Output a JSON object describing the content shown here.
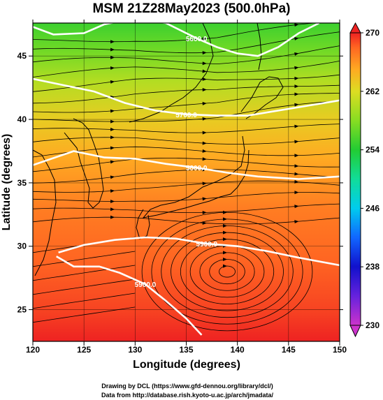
{
  "chart_data": {
    "type": "heatmap",
    "title": "MSM 21Z28May2023 (500.0hPa)",
    "xlabel": "Longitude (degrees)",
    "ylabel": "Latitude  (degrees)",
    "xlim": [
      120,
      150
    ],
    "ylim": [
      22.5,
      47.6
    ],
    "xticks": [
      120,
      125,
      130,
      135,
      140,
      145,
      150
    ],
    "yticks": [
      25,
      30,
      35,
      40,
      45
    ],
    "colorbar": {
      "ticks": [
        230,
        238,
        246,
        254,
        262,
        270
      ],
      "range": [
        230,
        270
      ],
      "stops": [
        {
          "v": 230,
          "c": "#cc33cc"
        },
        {
          "v": 234,
          "c": "#6622dd"
        },
        {
          "v": 238,
          "c": "#1111cc"
        },
        {
          "v": 242,
          "c": "#1166ff"
        },
        {
          "v": 246,
          "c": "#00ccee"
        },
        {
          "v": 250,
          "c": "#11dd99"
        },
        {
          "v": 254,
          "c": "#22cc33"
        },
        {
          "v": 258,
          "c": "#88dd22"
        },
        {
          "v": 262,
          "c": "#dddd22"
        },
        {
          "v": 265,
          "c": "#ffaa22"
        },
        {
          "v": 268,
          "c": "#ff6622"
        },
        {
          "v": 270,
          "c": "#ee2222"
        }
      ]
    },
    "temperature_field": [
      {
        "lat": 47.6,
        "value": 255
      },
      {
        "lat": 45.5,
        "value": 257
      },
      {
        "lat": 43,
        "value": 260
      },
      {
        "lat": 40,
        "value": 263
      },
      {
        "lat": 37,
        "value": 265
      },
      {
        "lat": 33,
        "value": 267
      },
      {
        "lat": 29,
        "value": 268
      },
      {
        "lat": 25,
        "value": 269
      },
      {
        "lat": 22.5,
        "value": 270
      }
    ],
    "contours": [
      {
        "label": "5600.0",
        "points": [
          [
            120,
            47.3
          ],
          [
            122,
            46.7
          ],
          [
            125,
            46.8
          ],
          [
            127,
            47.5
          ],
          [
            130,
            48
          ],
          [
            133,
            47.6
          ],
          [
            136,
            46.4
          ],
          [
            138,
            45.7
          ],
          [
            140,
            45.2
          ],
          [
            142,
            45
          ],
          [
            144,
            45.7
          ],
          [
            146,
            46.8
          ],
          [
            148,
            47.6
          ]
        ]
      },
      {
        "label": "5700.0",
        "points": [
          [
            120,
            43.2
          ],
          [
            123,
            42.7
          ],
          [
            126,
            42.2
          ],
          [
            129,
            41.3
          ],
          [
            132,
            40.7
          ],
          [
            135,
            40.4
          ],
          [
            138,
            40.3
          ],
          [
            141,
            40.3
          ],
          [
            144,
            40.7
          ],
          [
            147,
            41.1
          ],
          [
            150,
            41.5
          ]
        ]
      },
      {
        "label": "5800.0",
        "points": [
          [
            120,
            36.4
          ],
          [
            124,
            37.5
          ],
          [
            127,
            37
          ],
          [
            130,
            36.9
          ],
          [
            133,
            36.5
          ],
          [
            136,
            36.2
          ],
          [
            139,
            35.8
          ],
          [
            142,
            35.5
          ],
          [
            146,
            35.3
          ],
          [
            150,
            35.5
          ]
        ]
      },
      {
        "label": "5900.0",
        "points": [
          [
            122.5,
            29.5
          ],
          [
            125,
            30.1
          ],
          [
            128,
            30.5
          ],
          [
            131,
            30.7
          ],
          [
            134,
            30.6
          ],
          [
            137,
            30.2
          ],
          [
            140,
            30
          ],
          [
            143,
            29.6
          ],
          [
            146,
            29.1
          ],
          [
            150,
            28.5
          ]
        ]
      },
      {
        "label": "5900.0",
        "points": [
          [
            122.3,
            29.2
          ],
          [
            124,
            28.4
          ],
          [
            126.5,
            28.4
          ],
          [
            128.5,
            27.9
          ],
          [
            131,
            27
          ],
          [
            133,
            25.7
          ],
          [
            135,
            24.3
          ],
          [
            136.5,
            23
          ]
        ]
      }
    ],
    "streamlines": "westerly flow north of 32N, anticyclonic circulation centered near 139E 28N",
    "credits": [
      "Drawing by DCL (https://www.gfd-dennou.org/library/dcl/)",
      "Data from http://database.rish.kyoto-u.ac.jp/arch/jmadata/"
    ]
  }
}
